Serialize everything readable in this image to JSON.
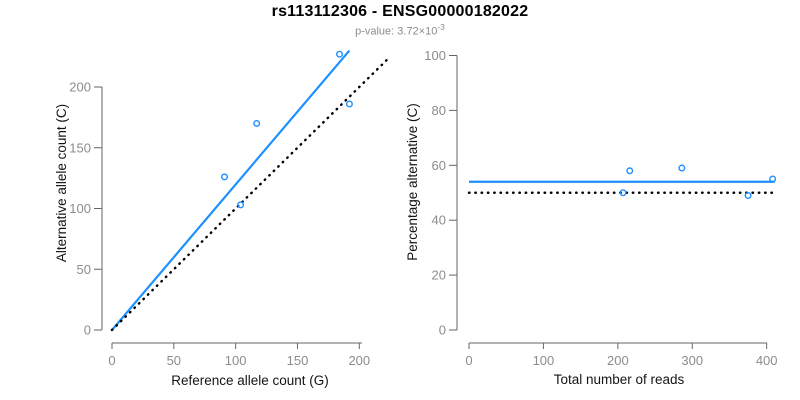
{
  "header": {
    "title": "rs113112306 - ENSG00000182022",
    "subtitle_main": "p-value: 3.72×10",
    "subtitle_exponent": "-3"
  },
  "colors": {
    "blue": "#1E90FF",
    "black": "#000000",
    "axis_gray": "#666666",
    "tick_label_gray": "#8c8c8c",
    "label_black": "#141414"
  },
  "chart_data": [
    {
      "type": "scatter",
      "panel": "left",
      "xlabel": "Reference allele count (G)",
      "ylabel": "Alternative allele count (C)",
      "xticks": [
        0,
        50,
        100,
        150,
        200
      ],
      "yticks": [
        0,
        50,
        100,
        150,
        200
      ],
      "xlim": [
        0,
        202
      ],
      "ylim": [
        0,
        230
      ],
      "grid": false,
      "legend": false,
      "points": [
        {
          "x": 91,
          "y": 126
        },
        {
          "x": 104,
          "y": 103
        },
        {
          "x": 117,
          "y": 170
        },
        {
          "x": 184,
          "y": 227
        },
        {
          "x": 192,
          "y": 186
        }
      ],
      "lines": [
        {
          "name": "regression-line",
          "style": "solid",
          "color_key": "blue",
          "x1": 0,
          "y1": 0,
          "x2": 192,
          "y2": 230
        },
        {
          "name": "identity-line",
          "style": "dotted",
          "color_key": "black",
          "x1": 0,
          "y1": 0,
          "x2": 224,
          "y2": 224
        }
      ]
    },
    {
      "type": "scatter",
      "panel": "right",
      "xlabel": "Total number of reads",
      "ylabel": "Percentage alternative (C)",
      "xticks": [
        0,
        100,
        200,
        300,
        400
      ],
      "yticks": [
        0,
        20,
        40,
        60,
        80,
        100
      ],
      "xlim": [
        0,
        411
      ],
      "ylim": [
        0,
        100
      ],
      "grid": false,
      "legend": false,
      "points": [
        {
          "x": 216,
          "y": 58
        },
        {
          "x": 286,
          "y": 59
        },
        {
          "x": 207,
          "y": 50
        },
        {
          "x": 375,
          "y": 49
        },
        {
          "x": 408,
          "y": 55
        }
      ],
      "lines": [
        {
          "name": "mean-percentage-line",
          "style": "solid",
          "color_key": "blue",
          "x1": 0,
          "y1": 54,
          "x2": 411,
          "y2": 54
        },
        {
          "name": "expected-50-percent-line",
          "style": "dotted",
          "color_key": "black",
          "x1": 0,
          "y1": 50,
          "x2": 411,
          "y2": 50
        }
      ]
    }
  ]
}
